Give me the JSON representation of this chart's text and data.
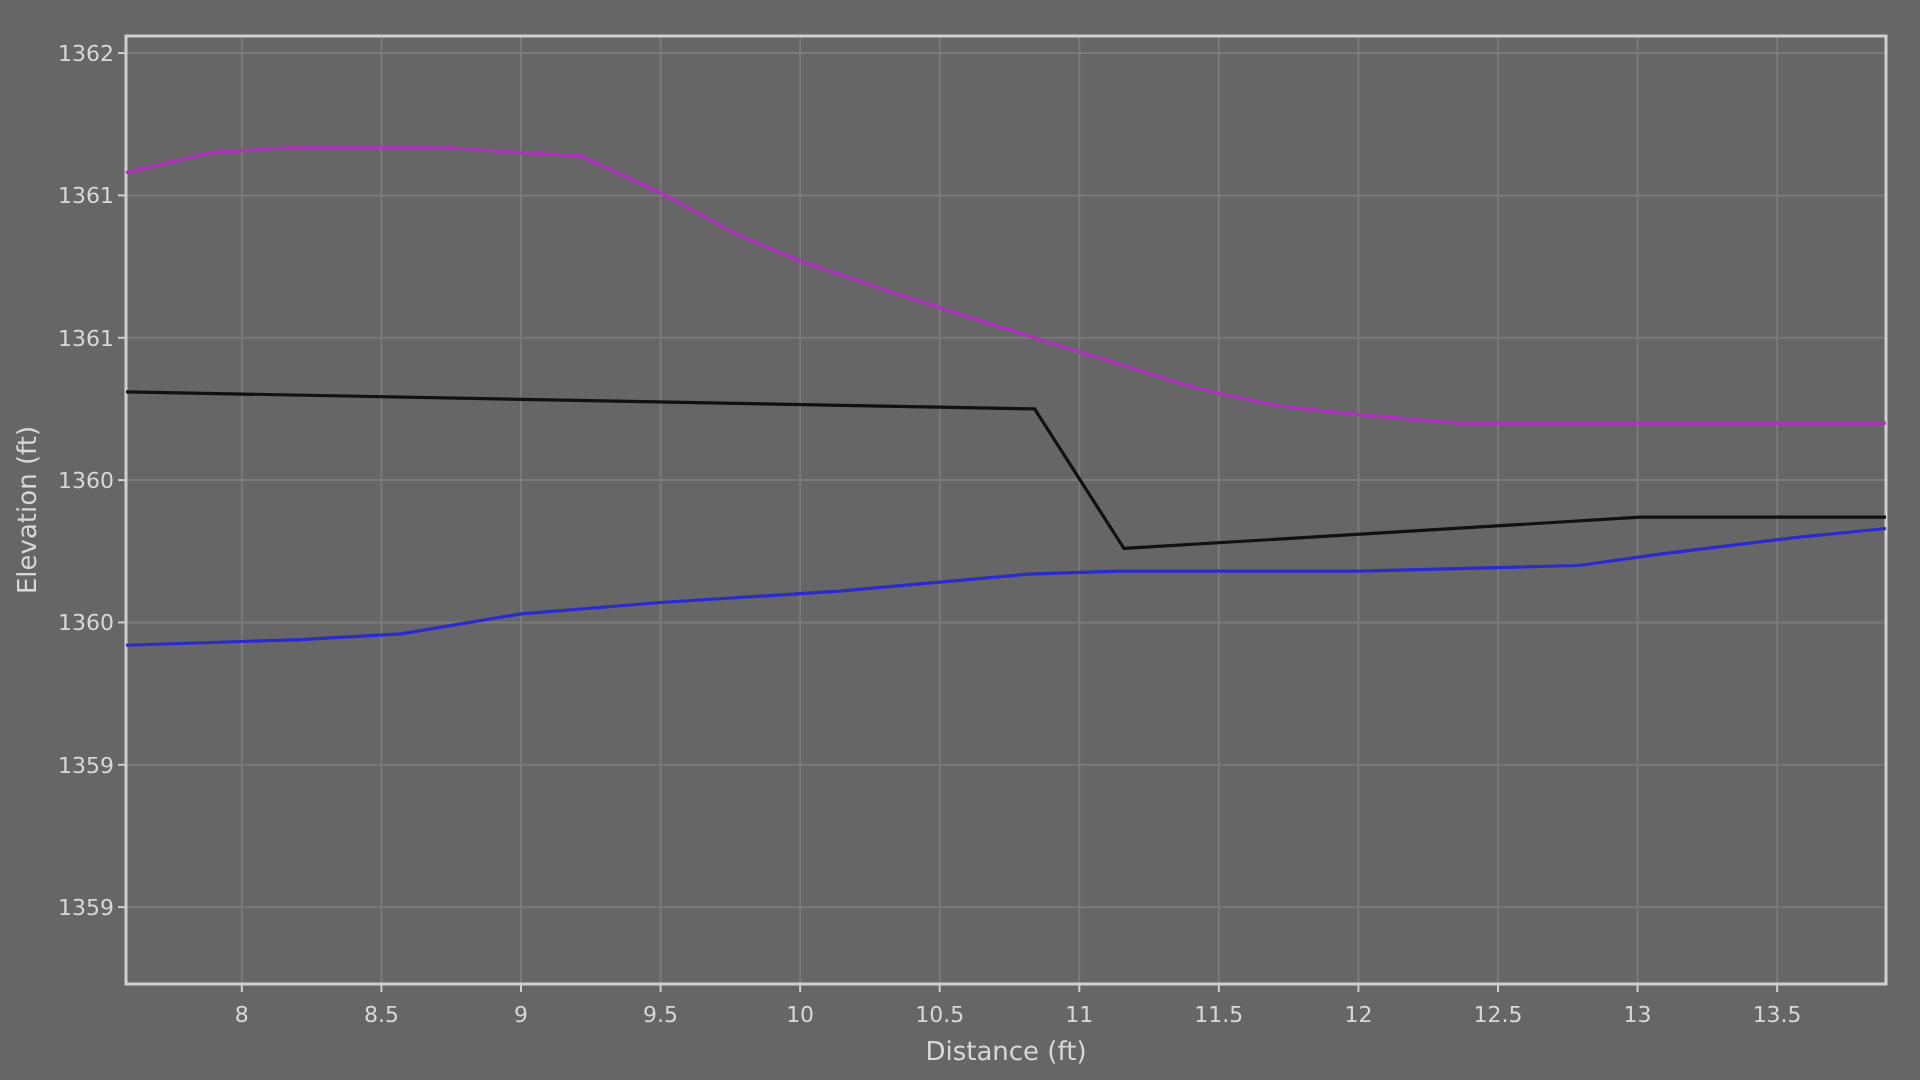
{
  "chart_data": {
    "type": "line",
    "xlabel": "Distance (ft)",
    "ylabel": "Elevation (ft)",
    "xlim": [
      7.585,
      13.89
    ],
    "ylim": [
      1358.73,
      1362.06
    ],
    "xticks": [
      8,
      8.5,
      9,
      9.5,
      10,
      10.5,
      11,
      11.5,
      12,
      12.5,
      13,
      13.5
    ],
    "yticks": [
      1362,
      {
        "value": 1361.5,
        "label": "1361"
      },
      1361,
      {
        "value": 1360.5,
        "label": "1360"
      },
      1360,
      {
        "value": 1359.5,
        "label": "1359"
      },
      1359
    ],
    "grid": true,
    "series": [
      {
        "color": "#b030c0",
        "x": [
          7.585,
          7.885,
          8.21,
          8.71,
          9.0,
          9.21,
          9.5,
          9.78,
          10.0,
          10.36,
          10.71,
          11.07,
          11.43,
          11.72,
          12.0,
          12.36,
          12.86,
          13.89
        ],
        "values": [
          1361.58,
          1361.65,
          1361.67,
          1361.67,
          1361.65,
          1361.64,
          1361.51,
          1361.36,
          1361.27,
          1361.15,
          1361.04,
          1360.93,
          1360.82,
          1360.76,
          1360.73,
          1360.7,
          1360.7,
          1360.7
        ]
      },
      {
        "color": "#111111",
        "x": [
          7.585,
          10.84,
          11.16,
          12.51,
          13.01,
          13.89
        ],
        "values": [
          1360.81,
          1360.75,
          1360.26,
          1360.34,
          1360.37,
          1360.37
        ]
      },
      {
        "color": "#2a2ad0",
        "x": [
          7.585,
          8.21,
          8.57,
          9.0,
          9.5,
          10.14,
          10.82,
          11.14,
          12.0,
          12.79,
          13.08,
          13.58,
          13.89
        ],
        "values": [
          1359.92,
          1359.94,
          1359.96,
          1360.03,
          1360.07,
          1360.11,
          1360.17,
          1360.18,
          1360.18,
          1360.2,
          1360.24,
          1360.3,
          1360.33
        ]
      }
    ]
  }
}
